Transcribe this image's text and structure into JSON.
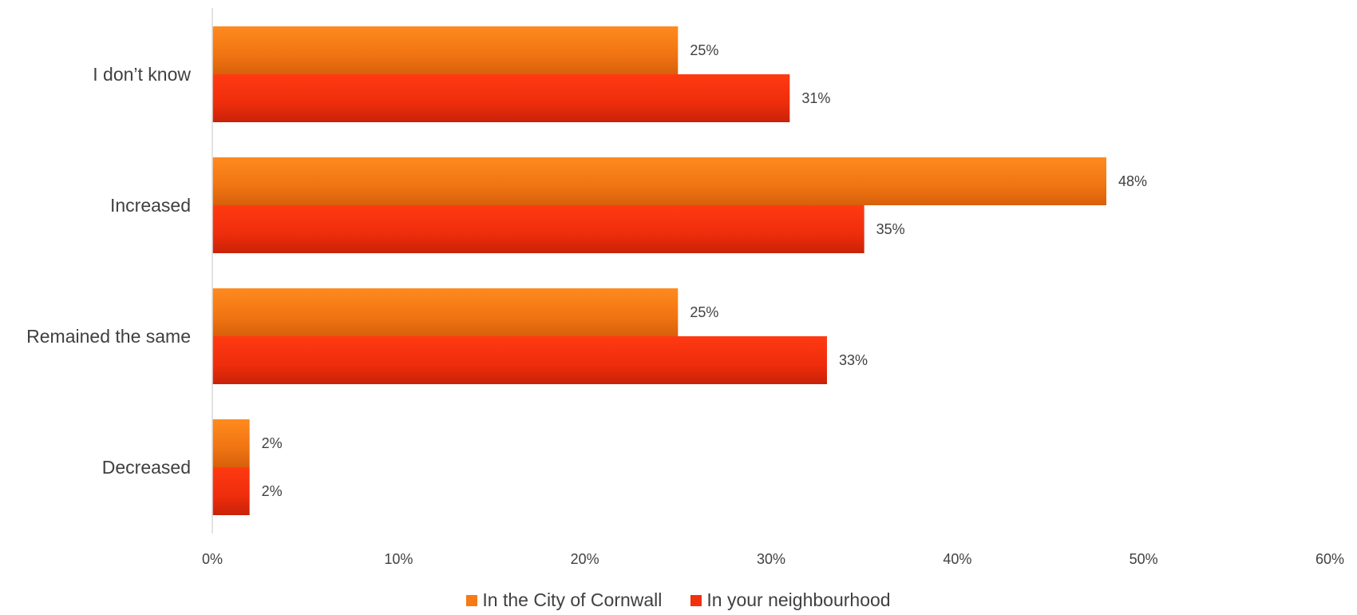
{
  "chart_data": {
    "type": "bar",
    "orientation": "horizontal",
    "categories": [
      "I don’t know",
      "Increased",
      "Remained the same",
      "Decreased"
    ],
    "series": [
      {
        "name": "In the City of Cornwall",
        "values": [
          25,
          48,
          25,
          2
        ],
        "labels": [
          "25%",
          "48%",
          "25%",
          "2%"
        ],
        "color": "#F77A14"
      },
      {
        "name": "In your neighbourhood",
        "values": [
          31,
          35,
          33,
          2
        ],
        "labels": [
          "31%",
          "35%",
          "33%",
          "2%"
        ],
        "color": "#F2300F"
      }
    ],
    "xlim": [
      0,
      60
    ],
    "x_ticks": [
      "0%",
      "10%",
      "20%",
      "30%",
      "40%",
      "50%",
      "60%"
    ],
    "title": "",
    "xlabel": "",
    "ylabel": "",
    "grid": false,
    "legend_position": "bottom"
  }
}
